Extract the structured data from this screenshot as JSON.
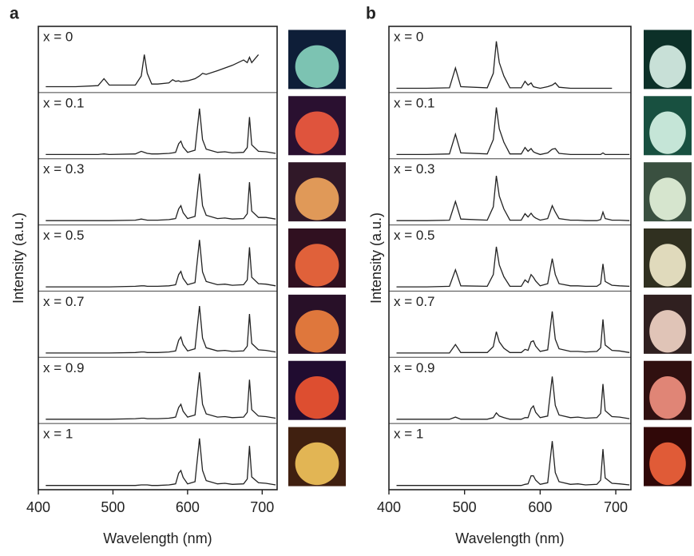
{
  "chart_data": [
    {
      "type": "line",
      "label": "a",
      "xlabel": "Wavelength (nm)",
      "ylabel": "Intensity (a.u.)",
      "xlim": [
        400,
        720
      ],
      "xticks": [
        400,
        500,
        600,
        700
      ],
      "ylim": [
        0,
        1
      ],
      "x": [
        410,
        450,
        480,
        488,
        495,
        530,
        538,
        542,
        546,
        552,
        560,
        575,
        580,
        584,
        588,
        591,
        594,
        600,
        610,
        616,
        620,
        625,
        640,
        650,
        660,
        675,
        680,
        683,
        686,
        695,
        705,
        718
      ],
      "series": [
        {
          "name": "x = 0",
          "color": "#222222",
          "values": [
            0.05,
            0.05,
            0.07,
            0.2,
            0.08,
            0.08,
            0.25,
            0.65,
            0.3,
            0.1,
            0.1,
            0.12,
            0.18,
            0.15,
            0.16,
            0.14,
            0.15,
            0.16,
            0.2,
            0.25,
            0.3,
            0.28,
            0.35,
            0.4,
            0.45,
            0.55,
            0.5,
            0.6,
            0.5,
            0.65,
            null,
            null
          ]
        },
        {
          "name": "x = 0.1",
          "color": "#222222",
          "values": [
            0.02,
            0.02,
            0.02,
            0.03,
            0.02,
            0.03,
            0.08,
            0.06,
            0.04,
            0.03,
            0.03,
            0.04,
            0.05,
            0.06,
            0.22,
            0.27,
            0.16,
            0.06,
            0.1,
            0.88,
            0.3,
            0.12,
            0.06,
            0.07,
            0.05,
            0.06,
            0.15,
            0.72,
            0.2,
            0.08,
            0.07,
            0.04
          ]
        },
        {
          "name": "x = 0.3",
          "color": "#222222",
          "values": [
            0.02,
            0.02,
            0.02,
            0.02,
            0.02,
            0.03,
            0.05,
            0.04,
            0.03,
            0.03,
            0.03,
            0.04,
            0.05,
            0.06,
            0.24,
            0.3,
            0.17,
            0.06,
            0.1,
            0.9,
            0.3,
            0.12,
            0.06,
            0.07,
            0.05,
            0.06,
            0.15,
            0.74,
            0.2,
            0.08,
            0.08,
            0.05
          ]
        },
        {
          "name": "x = 0.5",
          "color": "#222222",
          "values": [
            0.02,
            0.02,
            0.02,
            0.02,
            0.02,
            0.03,
            0.04,
            0.04,
            0.03,
            0.03,
            0.03,
            0.04,
            0.05,
            0.06,
            0.25,
            0.31,
            0.18,
            0.06,
            0.1,
            0.9,
            0.3,
            0.12,
            0.06,
            0.07,
            0.05,
            0.06,
            0.15,
            0.76,
            0.2,
            0.08,
            0.07,
            0.04
          ]
        },
        {
          "name": "x = 0.7",
          "color": "#222222",
          "values": [
            0.02,
            0.02,
            0.02,
            0.02,
            0.02,
            0.03,
            0.04,
            0.04,
            0.03,
            0.03,
            0.03,
            0.04,
            0.05,
            0.06,
            0.26,
            0.32,
            0.18,
            0.06,
            0.1,
            0.9,
            0.3,
            0.12,
            0.06,
            0.07,
            0.05,
            0.06,
            0.15,
            0.75,
            0.2,
            0.08,
            0.07,
            0.04
          ]
        },
        {
          "name": "x = 0.9",
          "color": "#222222",
          "values": [
            0.02,
            0.02,
            0.02,
            0.02,
            0.02,
            0.03,
            0.04,
            0.04,
            0.03,
            0.03,
            0.03,
            0.04,
            0.05,
            0.06,
            0.24,
            0.3,
            0.17,
            0.06,
            0.1,
            0.9,
            0.3,
            0.12,
            0.06,
            0.07,
            0.05,
            0.06,
            0.15,
            0.76,
            0.2,
            0.08,
            0.07,
            0.04
          ]
        },
        {
          "name": "x = 1",
          "color": "#222222",
          "values": [
            0.02,
            0.02,
            0.02,
            0.02,
            0.02,
            0.02,
            0.03,
            0.03,
            0.03,
            0.02,
            0.02,
            0.03,
            0.04,
            0.05,
            0.25,
            0.3,
            0.17,
            0.05,
            0.09,
            0.9,
            0.3,
            0.11,
            0.05,
            0.06,
            0.04,
            0.05,
            0.14,
            0.76,
            0.18,
            0.07,
            0.06,
            0.03
          ]
        }
      ]
    },
    {
      "type": "line",
      "label": "b",
      "xlabel": "Wavelength (nm)",
      "ylabel": "Intensity (a.u.)",
      "xlim": [
        400,
        720
      ],
      "xticks": [
        400,
        500,
        600,
        700
      ],
      "ylim": [
        0,
        1
      ],
      "x": [
        410,
        450,
        480,
        488,
        495,
        530,
        538,
        542,
        546,
        552,
        560,
        575,
        580,
        584,
        588,
        591,
        594,
        600,
        610,
        616,
        620,
        625,
        640,
        650,
        660,
        675,
        680,
        683,
        686,
        695,
        705,
        718
      ],
      "series": [
        {
          "name": "x = 0",
          "color": "#222222",
          "values": [
            0.02,
            0.02,
            0.03,
            0.4,
            0.05,
            0.03,
            0.3,
            0.9,
            0.5,
            0.25,
            0.03,
            0.03,
            0.15,
            0.08,
            0.12,
            0.05,
            0.04,
            0.02,
            0.05,
            0.08,
            0.12,
            0.04,
            0.02,
            0.02,
            0.02,
            0.02,
            0.02,
            0.02,
            0.02,
            0.02,
            null,
            null
          ]
        },
        {
          "name": "x = 0.1",
          "color": "#222222",
          "values": [
            0.02,
            0.02,
            0.03,
            0.4,
            0.05,
            0.03,
            0.3,
            0.9,
            0.5,
            0.25,
            0.03,
            0.03,
            0.15,
            0.08,
            0.13,
            0.07,
            0.05,
            0.02,
            0.05,
            0.12,
            0.13,
            0.04,
            0.02,
            0.02,
            0.02,
            0.02,
            0.02,
            0.05,
            0.02,
            0.02,
            0.02,
            0.02
          ]
        },
        {
          "name": "x = 0.3",
          "color": "#222222",
          "values": [
            0.02,
            0.02,
            0.03,
            0.38,
            0.05,
            0.03,
            0.28,
            0.86,
            0.48,
            0.24,
            0.03,
            0.03,
            0.15,
            0.09,
            0.16,
            0.1,
            0.07,
            0.03,
            0.06,
            0.3,
            0.18,
            0.06,
            0.03,
            0.03,
            0.02,
            0.02,
            0.04,
            0.18,
            0.06,
            0.03,
            0.03,
            0.02
          ]
        },
        {
          "name": "x = 0.5",
          "color": "#222222",
          "values": [
            0.02,
            0.02,
            0.03,
            0.34,
            0.04,
            0.03,
            0.25,
            0.77,
            0.43,
            0.21,
            0.03,
            0.03,
            0.15,
            0.1,
            0.25,
            0.2,
            0.13,
            0.04,
            0.08,
            0.55,
            0.25,
            0.08,
            0.04,
            0.04,
            0.03,
            0.03,
            0.08,
            0.45,
            0.12,
            0.05,
            0.04,
            0.03
          ]
        },
        {
          "name": "x = 0.7",
          "color": "#222222",
          "values": [
            0.02,
            0.02,
            0.02,
            0.18,
            0.03,
            0.03,
            0.14,
            0.42,
            0.23,
            0.11,
            0.03,
            0.03,
            0.09,
            0.07,
            0.23,
            0.25,
            0.15,
            0.05,
            0.08,
            0.8,
            0.28,
            0.1,
            0.05,
            0.05,
            0.04,
            0.05,
            0.12,
            0.65,
            0.17,
            0.07,
            0.06,
            0.03
          ]
        },
        {
          "name": "x = 0.9",
          "color": "#222222",
          "values": [
            0.02,
            0.02,
            0.02,
            0.06,
            0.02,
            0.02,
            0.05,
            0.14,
            0.08,
            0.05,
            0.02,
            0.02,
            0.05,
            0.05,
            0.22,
            0.27,
            0.15,
            0.05,
            0.08,
            0.82,
            0.28,
            0.1,
            0.05,
            0.06,
            0.04,
            0.05,
            0.13,
            0.68,
            0.18,
            0.07,
            0.06,
            0.03
          ]
        },
        {
          "name": "x = 1",
          "color": "#222222",
          "values": [
            0.02,
            0.02,
            0.02,
            0.02,
            0.02,
            0.02,
            0.02,
            0.02,
            0.02,
            0.02,
            0.02,
            0.02,
            0.04,
            0.05,
            0.2,
            0.2,
            0.12,
            0.04,
            0.07,
            0.85,
            0.26,
            0.09,
            0.04,
            0.05,
            0.03,
            0.04,
            0.12,
            0.7,
            0.16,
            0.06,
            0.05,
            0.03
          ]
        }
      ]
    }
  ]
}
